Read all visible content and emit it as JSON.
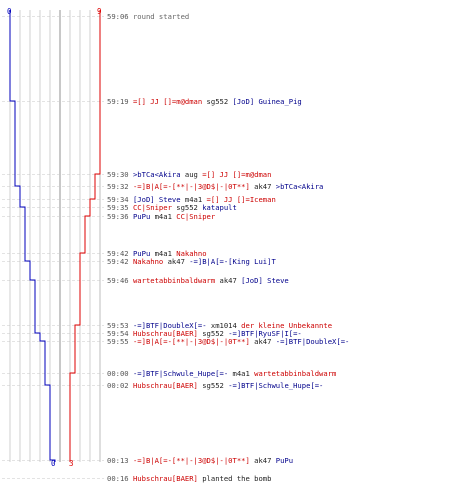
{
  "colors": {
    "blue": "#0000bb",
    "red": "#dd0000",
    "grid": "#b0b0b0",
    "dash": "#c8c8c8"
  },
  "scores": {
    "blue_start": "0",
    "red_start": "9",
    "blue_end": "0",
    "red_end": "3"
  },
  "events": [
    {
      "time": "59:06",
      "parts": [
        {
          "c": "gray",
          "t": "round started"
        }
      ]
    },
    {
      "time": "59:19",
      "parts": [
        {
          "c": "red",
          "t": "=[] JJ []=m@dman"
        },
        {
          "c": "msg",
          "t": " sg552 "
        },
        {
          "c": "blue",
          "t": "[JoD] Guinea_Pig"
        }
      ]
    },
    {
      "time": "59:30",
      "parts": [
        {
          "c": "blue",
          "t": ">bTCa<Akira"
        },
        {
          "c": "msg",
          "t": " aug "
        },
        {
          "c": "red",
          "t": "=[] JJ []=m@dman"
        }
      ]
    },
    {
      "time": "59:32",
      "parts": [
        {
          "c": "red",
          "t": "-=]B|A[=-[**|-|3@D$|-|0T**]"
        },
        {
          "c": "msg",
          "t": " ak47 "
        },
        {
          "c": "blue",
          "t": ">bTCa<Akira"
        }
      ]
    },
    {
      "time": "59:34",
      "parts": [
        {
          "c": "blue",
          "t": "[JoD] Steve"
        },
        {
          "c": "msg",
          "t": " m4a1 "
        },
        {
          "c": "red",
          "t": "=[] JJ []=Iceman"
        }
      ]
    },
    {
      "time": "59:35",
      "parts": [
        {
          "c": "red",
          "t": "CC|Sniper"
        },
        {
          "c": "msg",
          "t": " sg552 "
        },
        {
          "c": "blue",
          "t": "katapult"
        }
      ]
    },
    {
      "time": "59:36",
      "parts": [
        {
          "c": "blue",
          "t": "PuPu"
        },
        {
          "c": "msg",
          "t": " m4a1 "
        },
        {
          "c": "red",
          "t": "CC|Sniper"
        }
      ]
    },
    {
      "time": "59:42",
      "parts": [
        {
          "c": "blue",
          "t": "PuPu"
        },
        {
          "c": "msg",
          "t": " m4a1 "
        },
        {
          "c": "red",
          "t": "Nakahno"
        }
      ]
    },
    {
      "time": "59:42",
      "parts": [
        {
          "c": "red",
          "t": "Nakahno"
        },
        {
          "c": "msg",
          "t": " ak47 "
        },
        {
          "c": "blue",
          "t": "-=]B|A[=-[King Lui]T"
        }
      ]
    },
    {
      "time": "59:46",
      "parts": [
        {
          "c": "red",
          "t": "wartetabbinbaldwarm"
        },
        {
          "c": "msg",
          "t": " ak47 "
        },
        {
          "c": "blue",
          "t": "[JoD] Steve"
        }
      ]
    },
    {
      "time": "59:53",
      "parts": [
        {
          "c": "blue",
          "t": "-=]BTF|DoubleX[=-"
        },
        {
          "c": "msg",
          "t": " xm1014 "
        },
        {
          "c": "red",
          "t": "der kleine Unbekannte"
        }
      ]
    },
    {
      "time": "59:54",
      "parts": [
        {
          "c": "red",
          "t": "Hubschrau[BAER]"
        },
        {
          "c": "msg",
          "t": " sg552 "
        },
        {
          "c": "blue",
          "t": "-=]BTF|RyuSF|I[=-"
        }
      ]
    },
    {
      "time": "59:55",
      "parts": [
        {
          "c": "red",
          "t": "-=]B|A[=-[**|-|3@D$|-|0T**]"
        },
        {
          "c": "msg",
          "t": " ak47 "
        },
        {
          "c": "blue",
          "t": "-=]BTF|DoubleX[=-"
        }
      ]
    },
    {
      "time": "00:00",
      "parts": [
        {
          "c": "blue",
          "t": "-=]BTF|Schwule_Hupe[=-"
        },
        {
          "c": "msg",
          "t": " m4a1 "
        },
        {
          "c": "red",
          "t": "wartetabbinbaldwarm"
        }
      ]
    },
    {
      "time": "00:02",
      "parts": [
        {
          "c": "red",
          "t": "Hubschrau[BAER]"
        },
        {
          "c": "msg",
          "t": " sg552 "
        },
        {
          "c": "blue",
          "t": "-=]BTF|Schwule_Hupe[=-"
        }
      ]
    },
    {
      "time": "00:13",
      "parts": [
        {
          "c": "red",
          "t": "-=]B|A[=-[**|-|3@D$|-|0T**]"
        },
        {
          "c": "msg",
          "t": " ak47 "
        },
        {
          "c": "blue",
          "t": "PuPu"
        }
      ]
    },
    {
      "time": "00:16",
      "parts": [
        {
          "c": "red",
          "t": "Hubschrau[BAER]"
        },
        {
          "c": "msg",
          "t": " planted the bomb"
        }
      ]
    }
  ]
}
